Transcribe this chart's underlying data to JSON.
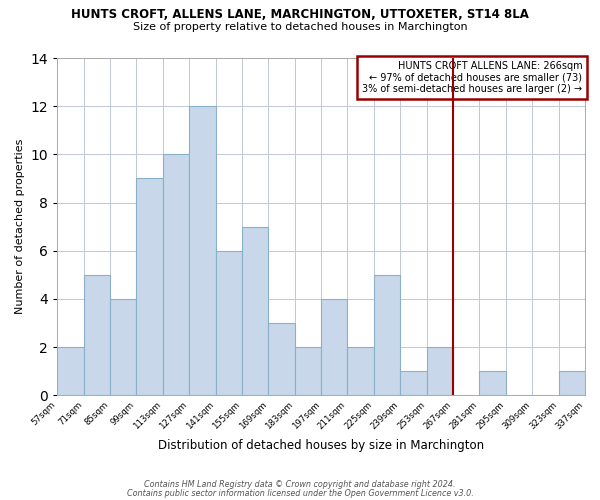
{
  "title": "HUNTS CROFT, ALLENS LANE, MARCHINGTON, UTTOXETER, ST14 8LA",
  "subtitle": "Size of property relative to detached houses in Marchington",
  "xlabel": "Distribution of detached houses by size in Marchington",
  "ylabel": "Number of detached properties",
  "footer_line1": "Contains HM Land Registry data © Crown copyright and database right 2024.",
  "footer_line2": "Contains public sector information licensed under the Open Government Licence v3.0.",
  "annotation_line1": "HUNTS CROFT ALLENS LANE: 266sqm",
  "annotation_line2": "← 97% of detached houses are smaller (73)",
  "annotation_line3": "3% of semi-detached houses are larger (2) →",
  "bar_edges": [
    57,
    71,
    85,
    99,
    113,
    127,
    141,
    155,
    169,
    183,
    197,
    211,
    225,
    239,
    253,
    267,
    281,
    295,
    309,
    323,
    337
  ],
  "bar_heights": [
    2,
    5,
    4,
    9,
    10,
    12,
    6,
    7,
    3,
    2,
    4,
    2,
    5,
    1,
    2,
    0,
    1,
    0,
    0,
    1
  ],
  "bar_color": "#c8d8ea",
  "bar_edgecolor": "#8aafc8",
  "reference_line_x": 267,
  "reference_line_color": "#990000",
  "ylim": [
    0,
    14
  ],
  "yticks": [
    0,
    2,
    4,
    6,
    8,
    10,
    12,
    14
  ],
  "tick_labels": [
    "57sqm",
    "71sqm",
    "85sqm",
    "99sqm",
    "113sqm",
    "127sqm",
    "141sqm",
    "155sqm",
    "169sqm",
    "183sqm",
    "197sqm",
    "211sqm",
    "225sqm",
    "239sqm",
    "253sqm",
    "267sqm",
    "281sqm",
    "295sqm",
    "309sqm",
    "323sqm",
    "337sqm"
  ],
  "annotation_box_edgecolor": "#990000",
  "annotation_box_facecolor": "#ffffff",
  "background_color": "#ffffff",
  "grid_color": "#c0c8d8"
}
